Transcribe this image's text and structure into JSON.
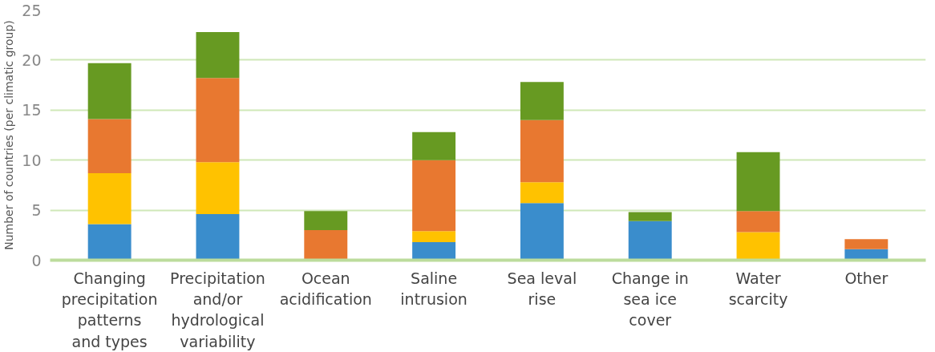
{
  "chart_data": {
    "type": "bar",
    "stacked": true,
    "ylabel": "Number of countries (per climatic group)",
    "categories": [
      "Changing\nprecipitation\npatterns\nand types",
      "Precipitation\nand/or\nhydrological\nvariability",
      "Ocean\nacidification",
      "Saline\nintrusion",
      "Sea leval\nrise",
      "Change in\nsea ice\ncover",
      "Water\nscarcity",
      "Other"
    ],
    "series": [
      {
        "color": "#3a8dcc",
        "values": [
          3.6,
          4.6,
          0,
          1.8,
          5.7,
          3.9,
          0,
          1.1
        ]
      },
      {
        "color": "#ffc200",
        "values": [
          5.1,
          5.2,
          0,
          1.1,
          2.1,
          0,
          2.8,
          0
        ]
      },
      {
        "color": "#e87830",
        "values": [
          5.4,
          8.4,
          3.0,
          7.1,
          6.2,
          0,
          2.1,
          1.0
        ]
      },
      {
        "color": "#679a22",
        "values": [
          5.6,
          4.6,
          1.9,
          2.8,
          3.8,
          0.9,
          5.9,
          0
        ]
      }
    ],
    "ylim": [
      0,
      25
    ],
    "yticks": [
      0,
      5,
      10,
      15,
      20,
      25
    ],
    "grid": "y"
  }
}
